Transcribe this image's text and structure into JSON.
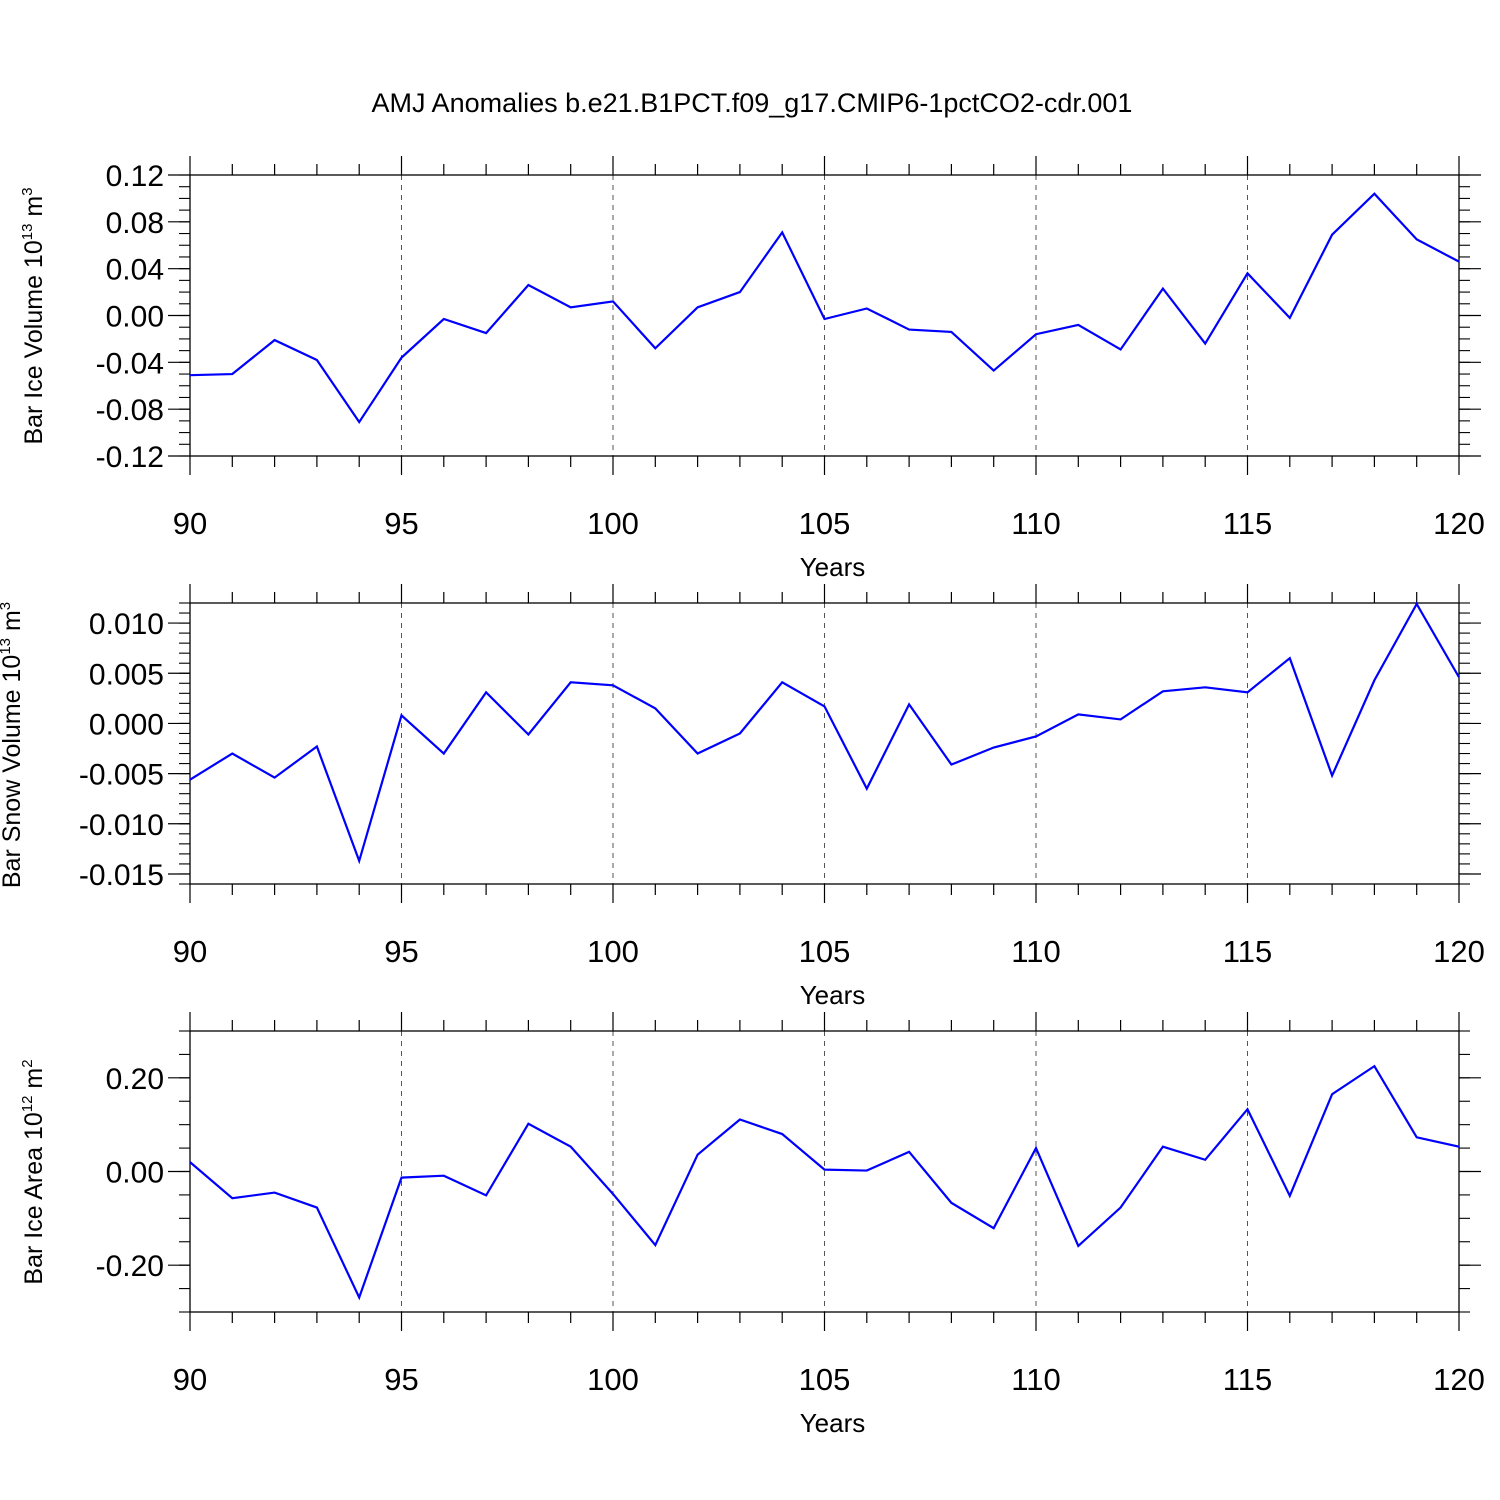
{
  "title": "AMJ Anomalies b.e21.B1PCT.f09_g17.CMIP6-1pctCO2-cdr.001",
  "chart_data": [
    {
      "type": "line",
      "title": "AMJ Anomalies b.e21.B1PCT.f09_g17.CMIP6-1pctCO2-cdr.001",
      "xlabel": "Years",
      "ylabel": {
        "text": "Bar Ice Volume 10",
        "exp": "13",
        "unit": " m",
        "unit_exp": "3"
      },
      "xlim": [
        90,
        120
      ],
      "ylim": [
        -0.12,
        0.12
      ],
      "x_ticks": [
        90,
        95,
        100,
        105,
        110,
        115,
        120
      ],
      "x_tick_labels": [
        "90",
        "95",
        "100",
        "105",
        "110",
        "115",
        "120"
      ],
      "y_ticks": [
        -0.12,
        -0.08,
        -0.04,
        0.0,
        0.04,
        0.08,
        0.12
      ],
      "y_tick_labels": [
        "-0.12",
        "-0.08",
        "-0.04",
        "0.00",
        "0.04",
        "0.08",
        "0.12"
      ],
      "y_minor_step": 0.01,
      "grid": "vertical-dashed",
      "line_color": "#0000ff",
      "x": [
        90,
        91,
        92,
        93,
        94,
        95,
        96,
        97,
        98,
        99,
        100,
        101,
        102,
        103,
        104,
        105,
        106,
        107,
        108,
        109,
        110,
        111,
        112,
        113,
        114,
        115,
        116,
        117,
        118,
        119,
        120
      ],
      "series": [
        {
          "name": "Bar Ice Volume",
          "values": [
            -0.051,
            -0.05,
            -0.021,
            -0.038,
            -0.091,
            -0.036,
            -0.003,
            -0.015,
            0.026,
            0.007,
            0.012,
            -0.028,
            0.007,
            0.02,
            0.071,
            -0.003,
            0.006,
            -0.012,
            -0.014,
            -0.047,
            -0.016,
            -0.008,
            -0.029,
            0.023,
            -0.024,
            0.036,
            -0.002,
            0.069,
            0.104,
            0.065,
            0.046
          ]
        }
      ]
    },
    {
      "type": "line",
      "xlabel": "Years",
      "ylabel": {
        "text": "Bar Snow Volume 10",
        "exp": "13",
        "unit": " m",
        "unit_exp": "3"
      },
      "xlim": [
        90,
        120
      ],
      "ylim": [
        -0.016,
        0.012
      ],
      "x_ticks": [
        90,
        95,
        100,
        105,
        110,
        115,
        120
      ],
      "x_tick_labels": [
        "90",
        "95",
        "100",
        "105",
        "110",
        "115",
        "120"
      ],
      "y_ticks": [
        -0.015,
        -0.01,
        -0.005,
        0.0,
        0.005,
        0.01
      ],
      "y_tick_labels": [
        "-0.015",
        "-0.010",
        "-0.005",
        "0.000",
        "0.005",
        "0.010"
      ],
      "y_minor_step": 0.001,
      "grid": "vertical-dashed",
      "line_color": "#0000ff",
      "x": [
        90,
        91,
        92,
        93,
        94,
        95,
        96,
        97,
        98,
        99,
        100,
        101,
        102,
        103,
        104,
        105,
        106,
        107,
        108,
        109,
        110,
        111,
        112,
        113,
        114,
        115,
        116,
        117,
        118,
        119,
        120
      ],
      "series": [
        {
          "name": "Bar Snow Volume",
          "values": [
            -0.0056,
            -0.003,
            -0.0054,
            -0.0023,
            -0.0137,
            0.0008,
            -0.003,
            0.0031,
            -0.0011,
            0.0041,
            0.0038,
            0.0015,
            -0.003,
            -0.001,
            0.0041,
            0.0017,
            -0.0065,
            0.0019,
            -0.0041,
            -0.0024,
            -0.0013,
            0.0009,
            0.0004,
            0.0032,
            0.0036,
            0.0031,
            0.0065,
            -0.0052,
            0.0043,
            0.0119,
            0.0046
          ]
        }
      ]
    },
    {
      "type": "line",
      "xlabel": "Years",
      "ylabel": {
        "text": "Bar Ice Area 10",
        "exp": "12",
        "unit": " m",
        "unit_exp": "2"
      },
      "xlim": [
        90,
        120
      ],
      "ylim": [
        -0.3,
        0.3
      ],
      "x_ticks": [
        90,
        95,
        100,
        105,
        110,
        115,
        120
      ],
      "x_tick_labels": [
        "90",
        "95",
        "100",
        "105",
        "110",
        "115",
        "120"
      ],
      "y_ticks": [
        -0.2,
        0.0,
        0.2
      ],
      "y_tick_labels": [
        "-0.20",
        "0.00",
        "0.20"
      ],
      "y_minor_step": 0.05,
      "grid": "vertical-dashed",
      "line_color": "#0000ff",
      "x": [
        90,
        91,
        92,
        93,
        94,
        95,
        96,
        97,
        98,
        99,
        100,
        101,
        102,
        103,
        104,
        105,
        106,
        107,
        108,
        109,
        110,
        111,
        112,
        113,
        114,
        115,
        116,
        117,
        118,
        119,
        120
      ],
      "series": [
        {
          "name": "Bar Ice Area",
          "values": [
            0.02,
            -0.057,
            -0.045,
            -0.077,
            -0.269,
            -0.013,
            -0.009,
            -0.051,
            0.102,
            0.053,
            -0.048,
            -0.157,
            0.036,
            0.111,
            0.08,
            0.004,
            0.002,
            0.042,
            -0.067,
            -0.121,
            0.05,
            -0.159,
            -0.077,
            0.053,
            0.025,
            0.133,
            -0.052,
            0.165,
            0.225,
            0.073,
            0.053
          ]
        }
      ]
    }
  ]
}
